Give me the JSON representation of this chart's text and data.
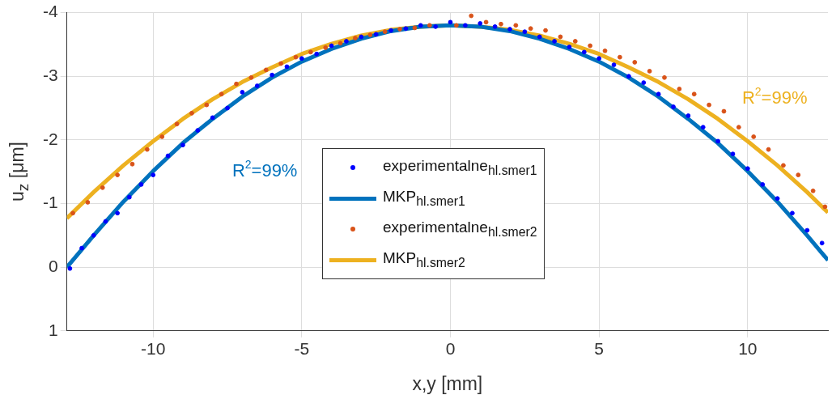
{
  "chart_data": {
    "type": "line",
    "xlabel": "x,y [mm]",
    "ylabel": "u$_{z}$ [μm]",
    "xlim": [
      -12.9,
      12.7
    ],
    "xticks": [
      -10,
      -5,
      0,
      5,
      10
    ],
    "ylim": [
      1,
      -4
    ],
    "yticks": [
      -4,
      -3,
      -2,
      -1,
      0,
      1
    ],
    "grid": true,
    "legend": "bottom",
    "annotations": [
      "R$^{2}$=99%",
      "R$^{2}$=99%"
    ],
    "series": [
      {
        "name": "experimentalne$_{hl.smer1}$",
        "type": "scatter",
        "marker": "circle",
        "color": "#0000ff",
        "x": [
          -12.8,
          -12.4,
          -12.0,
          -11.6,
          -11.2,
          -10.8,
          -10.4,
          -10.0,
          -9.5,
          -9.0,
          -8.5,
          -8.0,
          -7.5,
          -7.0,
          -6.5,
          -6.0,
          -5.5,
          -5.0,
          -4.5,
          -4.0,
          -3.5,
          -3.0,
          -2.5,
          -2.0,
          -1.5,
          -1.0,
          -0.5,
          0.0,
          0.5,
          1.0,
          1.5,
          2.0,
          2.5,
          3.0,
          3.5,
          4.0,
          4.5,
          5.0,
          5.5,
          6.0,
          6.5,
          7.0,
          7.5,
          8.0,
          8.5,
          9.0,
          9.5,
          10.0,
          10.5,
          11.0,
          11.5,
          12.0,
          12.5
        ],
        "values": [
          0.02,
          -0.3,
          -0.5,
          -0.72,
          -0.85,
          -1.1,
          -1.3,
          -1.45,
          -1.75,
          -1.92,
          -2.15,
          -2.35,
          -2.5,
          -2.75,
          -2.85,
          -3.02,
          -3.15,
          -3.28,
          -3.35,
          -3.48,
          -3.55,
          -3.62,
          -3.66,
          -3.72,
          -3.75,
          -3.8,
          -3.78,
          -3.85,
          -3.8,
          -3.83,
          -3.78,
          -3.74,
          -3.7,
          -3.62,
          -3.55,
          -3.46,
          -3.38,
          -3.28,
          -3.18,
          -3.0,
          -2.9,
          -2.72,
          -2.52,
          -2.38,
          -2.2,
          -1.98,
          -1.78,
          -1.55,
          -1.3,
          -1.08,
          -0.85,
          -0.58,
          -0.38
        ]
      },
      {
        "name": "MKP$_{hl.smer1}$",
        "marker": "none",
        "color": "#0072bd",
        "x": [
          -12.9,
          -12,
          -11,
          -10,
          -9,
          -8,
          -7,
          -6,
          -5,
          -4,
          -3,
          -2,
          -1,
          0,
          1,
          2,
          3,
          4,
          5,
          6,
          7,
          8,
          9,
          10,
          11,
          12,
          12.7
        ],
        "values": [
          0.0,
          -0.5,
          -1.03,
          -1.51,
          -1.95,
          -2.33,
          -2.68,
          -2.98,
          -3.23,
          -3.43,
          -3.59,
          -3.71,
          -3.78,
          -3.8,
          -3.78,
          -3.71,
          -3.59,
          -3.43,
          -3.23,
          -2.98,
          -2.68,
          -2.33,
          -1.95,
          -1.51,
          -1.03,
          -0.5,
          -0.11
        ]
      },
      {
        "name": "experimentalne$_{hl.smer2}$",
        "type": "scatter",
        "marker": "circle",
        "color": "#d95319",
        "x": [
          -12.7,
          -12.2,
          -11.7,
          -11.2,
          -10.7,
          -10.2,
          -9.7,
          -9.2,
          -8.7,
          -8.2,
          -7.7,
          -7.2,
          -6.7,
          -6.2,
          -5.7,
          -5.2,
          -4.7,
          -4.2,
          -3.7,
          -3.2,
          -2.7,
          -2.2,
          -1.7,
          -1.2,
          -0.7,
          0.2,
          0.7,
          1.2,
          1.7,
          2.2,
          2.7,
          3.2,
          3.7,
          4.2,
          4.7,
          5.2,
          5.7,
          6.2,
          6.7,
          7.2,
          7.7,
          8.2,
          8.7,
          9.2,
          9.7,
          10.2,
          10.7,
          11.2,
          11.7,
          12.2,
          12.6
        ],
        "values": [
          -0.85,
          -1.02,
          -1.25,
          -1.45,
          -1.62,
          -1.85,
          -2.05,
          -2.25,
          -2.42,
          -2.55,
          -2.72,
          -2.88,
          -2.98,
          -3.1,
          -3.2,
          -3.3,
          -3.38,
          -3.45,
          -3.52,
          -3.6,
          -3.65,
          -3.7,
          -3.74,
          -3.76,
          -3.8,
          -3.8,
          -3.95,
          -3.85,
          -3.82,
          -3.8,
          -3.75,
          -3.72,
          -3.62,
          -3.55,
          -3.48,
          -3.4,
          -3.3,
          -3.22,
          -3.08,
          -2.98,
          -2.8,
          -2.72,
          -2.55,
          -2.45,
          -2.2,
          -2.05,
          -1.85,
          -1.6,
          -1.45,
          -1.2,
          -0.95
        ]
      },
      {
        "name": "MKP$_{hl.smer2}$",
        "marker": "none",
        "color": "#edb120",
        "x": [
          -12.9,
          -12,
          -11,
          -10,
          -9,
          -8,
          -7,
          -6,
          -5,
          -4,
          -3,
          -2,
          -1,
          0,
          1,
          2,
          3,
          4,
          5,
          6,
          7,
          8,
          9,
          10,
          11,
          12,
          12.7
        ],
        "values": [
          -0.77,
          -1.18,
          -1.6,
          -1.98,
          -2.33,
          -2.64,
          -2.91,
          -3.14,
          -3.35,
          -3.51,
          -3.64,
          -3.73,
          -3.78,
          -3.8,
          -3.78,
          -3.73,
          -3.64,
          -3.51,
          -3.35,
          -3.14,
          -2.91,
          -2.64,
          -2.33,
          -1.98,
          -1.6,
          -1.18,
          -0.86
        ]
      }
    ]
  }
}
